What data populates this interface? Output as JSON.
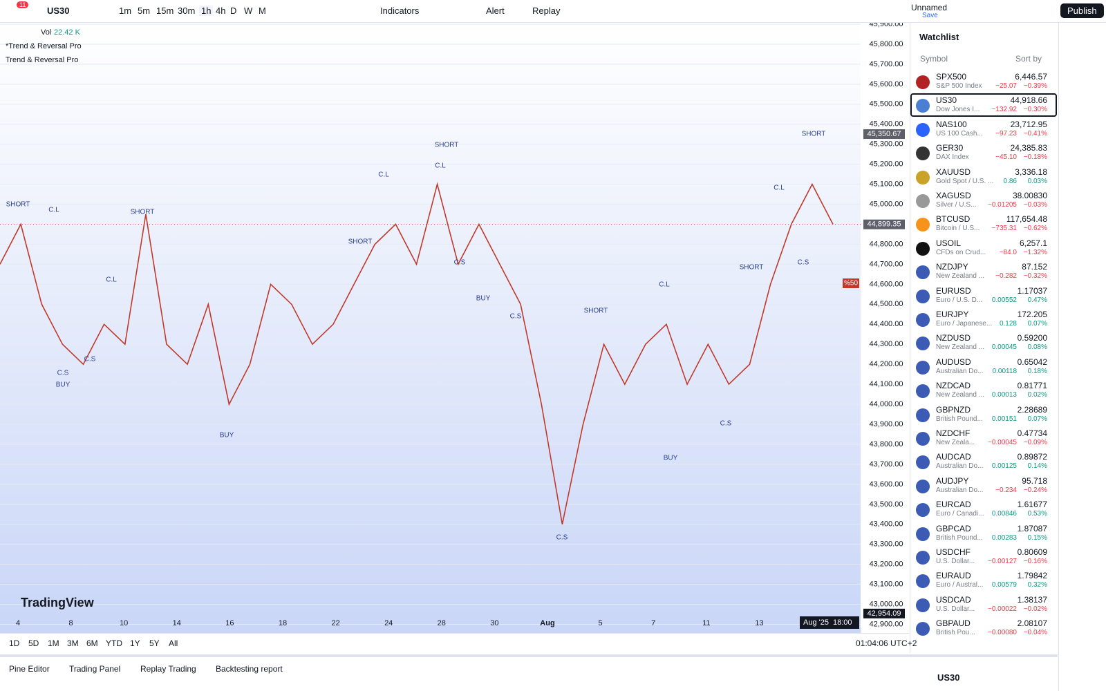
{
  "toolbar": {
    "alerts_badge": "11",
    "symbol": "US30",
    "intervals": [
      "1m",
      "5m",
      "15m",
      "30m",
      "1h",
      "4h",
      "D",
      "W",
      "M"
    ],
    "indicators": "Indicators",
    "alert": "Alert",
    "replay": "Replay",
    "layout_name": "Unnamed",
    "save": "Save",
    "publish": "Publish"
  },
  "legend": {
    "vol_label": "Vol",
    "vol_value": "22.42 K",
    "indicator_1": "*Trend & Reversal Pro",
    "indicator_2": "Trend & Reversal Pro"
  },
  "chart": {
    "ylim": [
      42857,
      45907
    ],
    "yticks": [
      {
        "value": 45900,
        "label": "45,900.00"
      },
      {
        "value": 45800,
        "label": "45,800.00"
      },
      {
        "value": 45700,
        "label": "45,700.00"
      },
      {
        "value": 45600,
        "label": "45,600.00"
      },
      {
        "value": 45500,
        "label": "45,500.00"
      },
      {
        "value": 45400,
        "label": "45,400.00"
      },
      {
        "value": 45300,
        "label": "45,300.00"
      },
      {
        "value": 45200,
        "label": "45,200.00"
      },
      {
        "value": 45100,
        "label": "45,100.00"
      },
      {
        "value": 45000,
        "label": "45,000.00"
      },
      {
        "value": 44900,
        "label": "44,900.00"
      },
      {
        "value": 44800,
        "label": "44,800.00"
      },
      {
        "value": 44700,
        "label": "44,700.00"
      },
      {
        "value": 44600,
        "label": "44,600.00"
      },
      {
        "value": 44500,
        "label": "44,500.00"
      },
      {
        "value": 44400,
        "label": "44,400.00"
      },
      {
        "value": 44300,
        "label": "44,300.00"
      },
      {
        "value": 44200,
        "label": "44,200.00"
      },
      {
        "value": 44100,
        "label": "44,100.00"
      },
      {
        "value": 44000,
        "label": "44,000.00"
      },
      {
        "value": 43900,
        "label": "43,900.00"
      },
      {
        "value": 43800,
        "label": "43,800.00"
      },
      {
        "value": 43700,
        "label": "43,700.00"
      },
      {
        "value": 43600,
        "label": "43,600.00"
      },
      {
        "value": 43500,
        "label": "43,500.00"
      },
      {
        "value": 43400,
        "label": "43,400.00"
      },
      {
        "value": 43300,
        "label": "43,300.00"
      },
      {
        "value": 43200,
        "label": "43,200.00"
      },
      {
        "value": 43100,
        "label": "43,100.00"
      },
      {
        "value": 43000,
        "label": "43,000.00"
      },
      {
        "value": 42900,
        "label": "42,900.00"
      }
    ],
    "price_tags": [
      {
        "value": 45350.67,
        "label": "45,350.67"
      },
      {
        "value": 44899.35,
        "label": "44,899.35"
      },
      {
        "value": 42954.09,
        "label": "42,954.09"
      }
    ],
    "x_labels": [
      "4",
      "8",
      "10",
      "14",
      "16",
      "18",
      "22",
      "24",
      "28",
      "30",
      "Aug",
      "5",
      "7",
      "11",
      "13"
    ],
    "crosshair_date": "Aug '25",
    "crosshair_time": "18:00",
    "pct_tag": "%50",
    "price_series": {
      "color": "#c0392b",
      "values": [
        44700,
        44900,
        44500,
        44300,
        44200,
        44400,
        44300,
        44950,
        44300,
        44200,
        44500,
        44000,
        44200,
        44600,
        44500,
        44300,
        44400,
        44600,
        44800,
        44900,
        44700,
        45100,
        44700,
        44900,
        44700,
        44500,
        44000,
        43400,
        43900,
        44300,
        44100,
        44300,
        44400,
        44100,
        44300,
        44100,
        44200,
        44600,
        44900,
        45100,
        44900
      ]
    },
    "signals": [
      "SHORT",
      "C.L",
      "C.S",
      "BUY",
      "SHORT",
      "C.L",
      "C.S",
      "BUY",
      "SHORT",
      "C.L",
      "SHORT",
      "C.L",
      "C.S",
      "BUY",
      "C.S",
      "SHORT",
      "C.S",
      "BUY",
      "C.L",
      "SHORT",
      "C.L",
      "SHORT",
      "C.S",
      "C.S"
    ],
    "logo": "TradingView"
  },
  "watchlist": {
    "title": "Watchlist",
    "col_symbol": "Symbol",
    "sort": "Sort by",
    "rows": [
      [
        "SPX500",
        "S&P 500 Index",
        "6,446.57",
        "−25.07",
        "−0.39%"
      ],
      [
        "US30",
        "Dow Jones I...",
        "44,918.66",
        "−132.92",
        "−0.30%"
      ],
      [
        "NAS100",
        "US 100 Cash...",
        "23,712.95",
        "−97.23",
        "−0.41%"
      ],
      [
        "GER30",
        "DAX Index",
        "24,385.83",
        "−45.10",
        "−0.18%"
      ],
      [
        "XAUUSD",
        "Gold Spot / U.S. ...",
        "3,336.18",
        "0.86",
        "0.03%"
      ],
      [
        "XAGUSD",
        "Silver / U.S...",
        "38.00830",
        "−0.01205",
        "−0.03%"
      ],
      [
        "BTCUSD",
        "Bitcoin / U.S...",
        "117,654.48",
        "−735.31",
        "−0.62%"
      ],
      [
        "USOIL",
        "CFDs on Crud...",
        "6,257.1",
        "−84.0",
        "−1.32%"
      ],
      [
        "NZDJPY",
        "New Zealand ...",
        "87.152",
        "−0.282",
        "−0.32%"
      ],
      [
        "EURUSD",
        "Euro / U.S. D...",
        "1.17037",
        "0.00552",
        "0.47%"
      ],
      [
        "EURJPY",
        "Euro / Japanese...",
        "172.205",
        "0.128",
        "0.07%"
      ],
      [
        "NZDUSD",
        "New Zealand ...",
        "0.59200",
        "0.00045",
        "0.08%"
      ],
      [
        "AUDUSD",
        "Australian Do...",
        "0.65042",
        "0.00118",
        "0.18%"
      ],
      [
        "NZDCAD",
        "New Zealand ...",
        "0.81771",
        "0.00013",
        "0.02%"
      ],
      [
        "GBPNZD",
        "British Pound...",
        "2.28689",
        "0.00151",
        "0.07%"
      ],
      [
        "NZDCHF",
        "New Zeala...",
        "0.47734",
        "−0.00045",
        "−0.09%"
      ],
      [
        "AUDCAD",
        "Australian Do...",
        "0.89872",
        "0.00125",
        "0.14%"
      ],
      [
        "AUDJPY",
        "Australian Do...",
        "95.718",
        "−0.234",
        "−0.24%"
      ],
      [
        "EURCAD",
        "Euro / Canadi...",
        "1.61677",
        "0.00846",
        "0.53%"
      ],
      [
        "GBPCAD",
        "British Pound...",
        "1.87087",
        "0.00283",
        "0.15%"
      ],
      [
        "USDCHF",
        "U.S. Dollar...",
        "0.80609",
        "−0.00127",
        "−0.16%"
      ],
      [
        "EURAUD",
        "Euro / Austral...",
        "1.79842",
        "0.00579",
        "0.32%"
      ],
      [
        "USDCAD",
        "U.S. Dollar...",
        "1.38137",
        "−0.00022",
        "−0.02%"
      ],
      [
        "GBPAUD",
        "British Pou...",
        "2.08107",
        "−0.00080",
        "−0.04%"
      ]
    ],
    "footer_symbol": "US30"
  },
  "ranges": [
    "1D",
    "5D",
    "1M",
    "3M",
    "6M",
    "YTD",
    "1Y",
    "5Y",
    "All"
  ],
  "clock": "01:04:06 UTC+2",
  "tabs": [
    "Pine Editor",
    "Trading Panel",
    "Replay Trading",
    "Backtesting report"
  ]
}
